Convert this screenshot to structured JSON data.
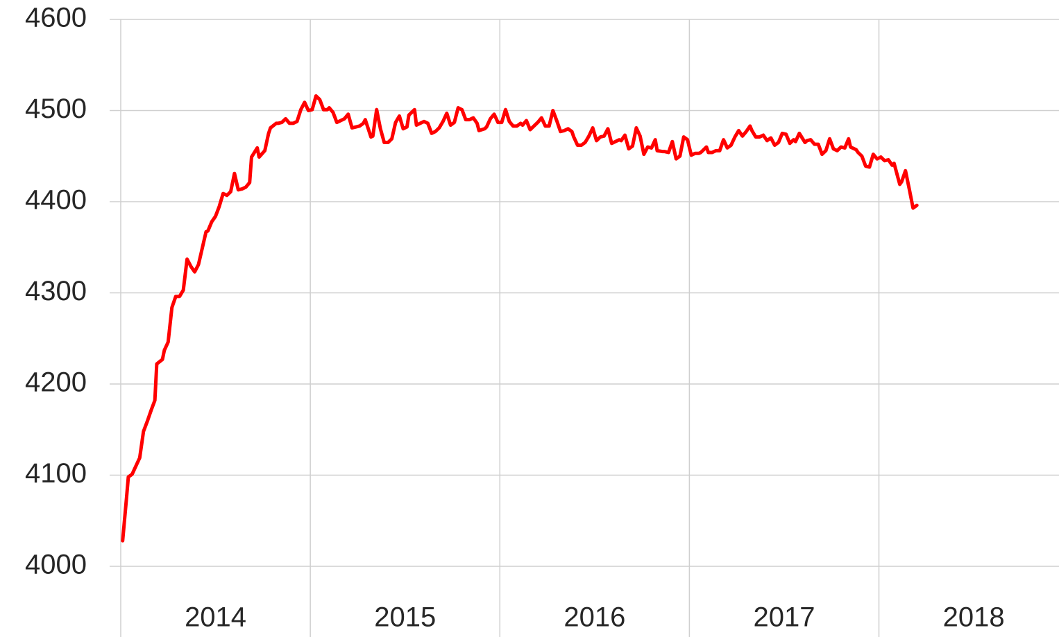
{
  "chart_data": {
    "type": "line",
    "x": [
      2014.01,
      2014.03,
      2014.04,
      2014.06,
      2014.08,
      2014.1,
      2014.12,
      2014.14,
      2014.16,
      2014.18,
      2014.19,
      2014.22,
      2014.23,
      2014.25,
      2014.27,
      2014.29,
      2014.31,
      2014.33,
      2014.35,
      2014.37,
      2014.39,
      2014.41,
      2014.42,
      2014.45,
      2014.46,
      2014.48,
      2014.5,
      2014.52,
      2014.54,
      2014.56,
      2014.58,
      2014.6,
      2014.62,
      2014.64,
      2014.66,
      2014.68,
      2014.69,
      2014.72,
      2014.73,
      2014.76,
      2014.78,
      2014.79,
      2014.82,
      2014.83,
      2014.85,
      2014.87,
      2014.89,
      2014.91,
      2014.93,
      2014.95,
      2014.97,
      2014.99,
      2015.01,
      2015.03,
      2015.05,
      2015.07,
      2015.09,
      2015.1,
      2015.12,
      2015.14,
      2015.16,
      2015.18,
      2015.2,
      2015.22,
      2015.24,
      2015.26,
      2015.28,
      2015.29,
      2015.32,
      2015.33,
      2015.35,
      2015.37,
      2015.39,
      2015.41,
      2015.43,
      2015.45,
      2015.47,
      2015.49,
      2015.51,
      2015.52,
      2015.55,
      2015.56,
      2015.58,
      2015.6,
      2015.62,
      2015.64,
      2015.66,
      2015.68,
      2015.7,
      2015.72,
      2015.74,
      2015.76,
      2015.78,
      2015.8,
      2015.82,
      2015.84,
      2015.86,
      2015.88,
      2015.89,
      2015.92,
      2015.93,
      2015.95,
      2015.97,
      2015.99,
      2016.01,
      2016.03,
      2016.05,
      2016.07,
      2016.09,
      2016.11,
      2016.12,
      2016.14,
      2016.16,
      2016.18,
      2016.2,
      2016.22,
      2016.24,
      2016.26,
      2016.28,
      2016.3,
      2016.32,
      2016.34,
      2016.36,
      2016.38,
      2016.39,
      2016.41,
      2016.43,
      2016.45,
      2016.47,
      2016.49,
      2016.51,
      2016.53,
      2016.55,
      2016.57,
      2016.59,
      2016.61,
      2016.63,
      2016.64,
      2016.66,
      2016.68,
      2016.7,
      2016.72,
      2016.74,
      2016.76,
      2016.78,
      2016.8,
      2016.82,
      2016.83,
      2016.86,
      2016.87,
      2016.89,
      2016.91,
      2016.93,
      2016.95,
      2016.97,
      2016.99,
      2017.01,
      2017.03,
      2017.05,
      2017.06,
      2017.09,
      2017.1,
      2017.12,
      2017.14,
      2017.16,
      2017.18,
      2017.2,
      2017.22,
      2017.24,
      2017.26,
      2017.28,
      2017.3,
      2017.32,
      2017.33,
      2017.35,
      2017.37,
      2017.39,
      2017.41,
      2017.43,
      2017.45,
      2017.47,
      2017.49,
      2017.51,
      2017.53,
      2017.55,
      2017.56,
      2017.58,
      2017.61,
      2017.62,
      2017.64,
      2017.66,
      2017.68,
      2017.7,
      2017.72,
      2017.74,
      2017.76,
      2017.78,
      2017.8,
      2017.82,
      2017.84,
      2017.85,
      2017.88,
      2017.89,
      2017.91,
      2017.93,
      2017.95,
      2017.97,
      2017.99,
      2018.01,
      2018.03,
      2018.05,
      2018.07,
      2018.08,
      2018.11,
      2018.12,
      2018.14,
      2018.16,
      2018.18,
      2018.2
    ],
    "series": [
      {
        "color": "#ff0000",
        "values": [
          4028,
          4074,
          4098,
          4101,
          4110,
          4119,
          4148,
          4159,
          4171,
          4182,
          4222,
          4227,
          4237,
          4246,
          4284,
          4296,
          4296,
          4303,
          4337,
          4329,
          4323,
          4331,
          4340,
          4367,
          4368,
          4378,
          4384,
          4395,
          4409,
          4407,
          4411,
          4431,
          4413,
          4414,
          4416,
          4421,
          4449,
          4459,
          4449,
          4456,
          4475,
          4481,
          4486,
          4486,
          4487,
          4491,
          4486,
          4486,
          4488,
          4501,
          4509,
          4500,
          4501,
          4516,
          4512,
          4501,
          4501,
          4503,
          4498,
          4487,
          4489,
          4491,
          4496,
          4481,
          4482,
          4483,
          4486,
          4490,
          4471,
          4472,
          4501,
          4480,
          4465,
          4465,
          4469,
          4487,
          4494,
          4480,
          4482,
          4495,
          4501,
          4484,
          4486,
          4488,
          4486,
          4475,
          4477,
          4481,
          4488,
          4497,
          4484,
          4487,
          4503,
          4501,
          4490,
          4490,
          4492,
          4486,
          4478,
          4480,
          4482,
          4491,
          4496,
          4487,
          4487,
          4501,
          4488,
          4483,
          4483,
          4486,
          4484,
          4489,
          4479,
          4483,
          4487,
          4492,
          4483,
          4483,
          4500,
          4489,
          4477,
          4478,
          4480,
          4477,
          4471,
          4462,
          4462,
          4465,
          4472,
          4481,
          4467,
          4471,
          4472,
          4480,
          4464,
          4466,
          4468,
          4467,
          4473,
          4458,
          4461,
          4481,
          4472,
          4452,
          4460,
          4459,
          4468,
          4456,
          4455,
          4455,
          4454,
          4466,
          4447,
          4450,
          4471,
          4468,
          4451,
          4453,
          4453,
          4454,
          4460,
          4454,
          4454,
          4456,
          4456,
          4468,
          4459,
          4462,
          4471,
          4478,
          4472,
          4477,
          4483,
          4478,
          4471,
          4471,
          4473,
          4467,
          4470,
          4462,
          4465,
          4475,
          4474,
          4464,
          4468,
          4466,
          4475,
          4465,
          4467,
          4468,
          4463,
          4463,
          4452,
          4456,
          4469,
          4458,
          4456,
          4460,
          4459,
          4469,
          4460,
          4457,
          4454,
          4450,
          4439,
          4438,
          4452,
          4447,
          4449,
          4445,
          4446,
          4440,
          4442,
          4419,
          4422,
          4434,
          4414,
          4393,
          4396
        ]
      }
    ],
    "xlim": [
      2014,
      2018.95
    ],
    "xticks": [
      2014,
      2015,
      2016,
      2017,
      2018
    ],
    "ylim": [
      4000,
      4600
    ],
    "yticks": [
      4000,
      4100,
      4200,
      4300,
      4400,
      4500,
      4600
    ],
    "grid": true
  }
}
